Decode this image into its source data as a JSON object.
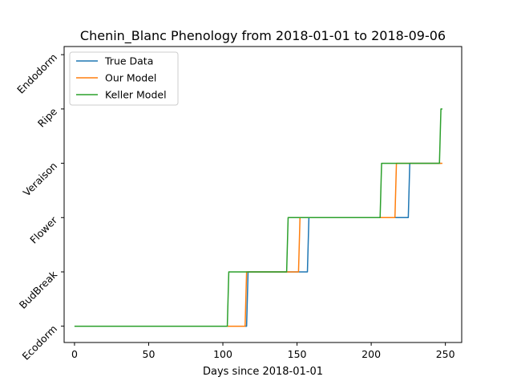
{
  "chart_data": {
    "type": "line",
    "title": "Chenin_Blanc Phenology from 2018-01-01 to 2018-09-06",
    "xlabel": "Days since 2018-01-01",
    "ylabel": "",
    "xlim": [
      -7,
      261
    ],
    "ylim": [
      -0.3,
      5.15
    ],
    "x_ticks": [
      0,
      50,
      100,
      150,
      200,
      250
    ],
    "y_tick_values": [
      0,
      1,
      2,
      3,
      4,
      5
    ],
    "y_tick_labels": [
      "Ecodorm",
      "BudBreak",
      "Flower",
      "Veraison",
      "Ripe",
      "Endodorm"
    ],
    "grid": false,
    "legend_position": "top-left",
    "series": [
      {
        "name": "True Data",
        "color": "#1f77b4",
        "points": [
          [
            0,
            0
          ],
          [
            116,
            0
          ],
          [
            117,
            1
          ],
          [
            157,
            1
          ],
          [
            158,
            2
          ],
          [
            225,
            2
          ],
          [
            226,
            3
          ],
          [
            247,
            3
          ]
        ]
      },
      {
        "name": "Our Model",
        "color": "#ff7f0e",
        "points": [
          [
            0,
            0
          ],
          [
            115,
            0
          ],
          [
            116,
            1
          ],
          [
            151,
            1
          ],
          [
            152,
            2
          ],
          [
            216,
            2
          ],
          [
            217,
            3
          ],
          [
            248,
            3
          ]
        ]
      },
      {
        "name": "Keller Model",
        "color": "#2ca02c",
        "points": [
          [
            0,
            0
          ],
          [
            103,
            0
          ],
          [
            104,
            1
          ],
          [
            143,
            1
          ],
          [
            144,
            2
          ],
          [
            206,
            2
          ],
          [
            207,
            3
          ],
          [
            246,
            3
          ],
          [
            247,
            4
          ],
          [
            248,
            4
          ]
        ]
      }
    ]
  }
}
